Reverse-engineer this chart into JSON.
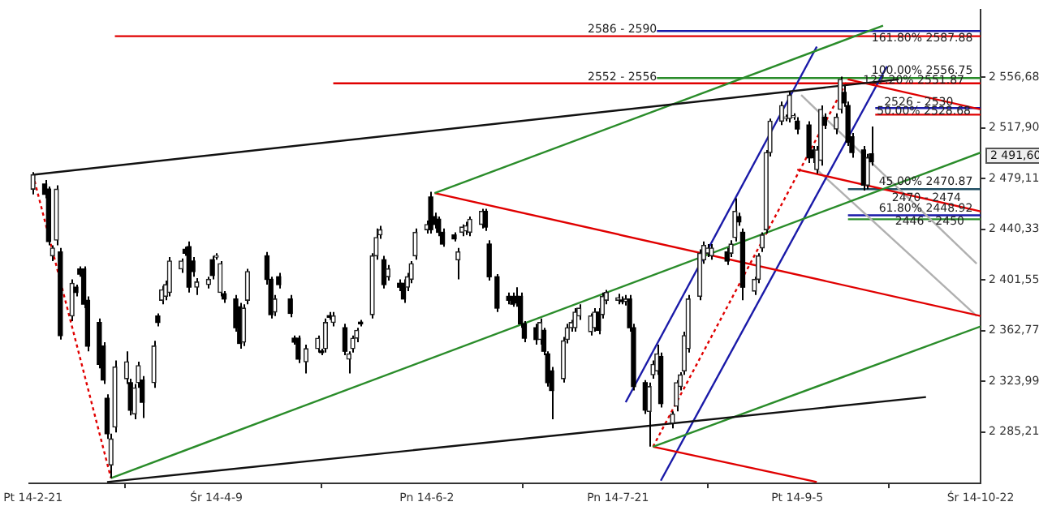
{
  "chart_data": {
    "type": "candlestick",
    "x": [
      "2014-02-21",
      "2014-02-24",
      "2014-02-25",
      "2014-02-26",
      "2014-02-27",
      "2014-02-28",
      "2014-03-03",
      "2014-03-04",
      "2014-03-05",
      "2014-03-06",
      "2014-03-07",
      "2014-03-10",
      "2014-03-11",
      "2014-03-12",
      "2014-03-13",
      "2014-03-14",
      "2014-03-17",
      "2014-03-18",
      "2014-03-19",
      "2014-03-20",
      "2014-03-21",
      "2014-03-24",
      "2014-03-25",
      "2014-03-26",
      "2014-03-27",
      "2014-03-28",
      "2014-03-31",
      "2014-04-01",
      "2014-04-02",
      "2014-04-03",
      "2014-04-04",
      "2014-04-07",
      "2014-04-08",
      "2014-04-09",
      "2014-04-10",
      "2014-04-11",
      "2014-04-14",
      "2014-04-15",
      "2014-04-16",
      "2014-04-17",
      "2014-04-22",
      "2014-04-23",
      "2014-04-24",
      "2014-04-25",
      "2014-04-28",
      "2014-04-29",
      "2014-04-30",
      "2014-05-02",
      "2014-05-05",
      "2014-05-06",
      "2014-05-07",
      "2014-05-08",
      "2014-05-09",
      "2014-05-12",
      "2014-05-13",
      "2014-05-14",
      "2014-05-15",
      "2014-05-16",
      "2014-05-19",
      "2014-05-20",
      "2014-05-21",
      "2014-05-22",
      "2014-05-23",
      "2014-05-26",
      "2014-05-27",
      "2014-05-28",
      "2014-05-29",
      "2014-05-30",
      "2014-06-02",
      "2014-06-03",
      "2014-06-04",
      "2014-06-05",
      "2014-06-06",
      "2014-06-09",
      "2014-06-10",
      "2014-06-11",
      "2014-06-12",
      "2014-06-13",
      "2014-06-16",
      "2014-06-17",
      "2014-06-18",
      "2014-06-20",
      "2014-06-23",
      "2014-06-24",
      "2014-06-25",
      "2014-06-26",
      "2014-06-27",
      "2014-06-30",
      "2014-07-01",
      "2014-07-02",
      "2014-07-03",
      "2014-07-04",
      "2014-07-07",
      "2014-07-08",
      "2014-07-09",
      "2014-07-10",
      "2014-07-11",
      "2014-07-14",
      "2014-07-15",
      "2014-07-16",
      "2014-07-17",
      "2014-07-18",
      "2014-07-21",
      "2014-07-22",
      "2014-07-23",
      "2014-07-24",
      "2014-07-25",
      "2014-07-28",
      "2014-07-29",
      "2014-07-30",
      "2014-07-31",
      "2014-08-01",
      "2014-08-04",
      "2014-08-05",
      "2014-08-06",
      "2014-08-07",
      "2014-08-08",
      "2014-08-11",
      "2014-08-12",
      "2014-08-13",
      "2014-08-14",
      "2014-08-18",
      "2014-08-19",
      "2014-08-20",
      "2014-08-21",
      "2014-08-22",
      "2014-08-25",
      "2014-08-26",
      "2014-08-27",
      "2014-08-28",
      "2014-08-29",
      "2014-09-01",
      "2014-09-02",
      "2014-09-03",
      "2014-09-04",
      "2014-09-05",
      "2014-09-08",
      "2014-09-09",
      "2014-09-10",
      "2014-09-11",
      "2014-09-12",
      "2014-09-15",
      "2014-09-16",
      "2014-09-17",
      "2014-09-18",
      "2014-09-19",
      "2014-09-22",
      "2014-09-23",
      "2014-09-24"
    ],
    "ohlc": [
      [
        2471,
        2484,
        2467,
        2482
      ],
      [
        2475,
        2478,
        2464,
        2467
      ],
      [
        2471,
        2473,
        2428,
        2431
      ],
      [
        2420,
        2428,
        2416,
        2426
      ],
      [
        2432,
        2474,
        2428,
        2471
      ],
      [
        2423,
        2426,
        2356,
        2359
      ],
      [
        2374,
        2402,
        2370,
        2399
      ],
      [
        2396,
        2398,
        2389,
        2392
      ],
      [
        2410,
        2412,
        2404,
        2406
      ],
      [
        2410,
        2412,
        2380,
        2383
      ],
      [
        2386,
        2389,
        2347,
        2351
      ],
      [
        2369,
        2372,
        2334,
        2337
      ],
      [
        2351,
        2354,
        2322,
        2325
      ],
      [
        2311,
        2314,
        2280,
        2284
      ],
      [
        2260,
        2284,
        2250,
        2280
      ],
      [
        2289,
        2340,
        2285,
        2335
      ],
      [
        2326,
        2347,
        2322,
        2339
      ],
      [
        2323,
        2326,
        2298,
        2302
      ],
      [
        2299,
        2322,
        2295,
        2319
      ],
      [
        2323,
        2339,
        2319,
        2336
      ],
      [
        2325,
        2328,
        2296,
        2308
      ],
      [
        2323,
        2355,
        2319,
        2351
      ],
      [
        2374,
        2376,
        2366,
        2369
      ],
      [
        2386,
        2397,
        2383,
        2394
      ],
      [
        2389,
        2401,
        2386,
        2398
      ],
      [
        2392,
        2419,
        2389,
        2416
      ],
      [
        2410,
        2418,
        2407,
        2416
      ],
      [
        2425,
        2427,
        2420,
        2422
      ],
      [
        2427,
        2431,
        2392,
        2396
      ],
      [
        2416,
        2419,
        2404,
        2408
      ],
      [
        2396,
        2403,
        2390,
        2400
      ],
      [
        2398,
        2404,
        2395,
        2402
      ],
      [
        2417,
        2420,
        2402,
        2405
      ],
      [
        2419,
        2422,
        2417,
        2420
      ],
      [
        2392,
        2416,
        2389,
        2414
      ],
      [
        2391,
        2393,
        2384,
        2387
      ],
      [
        2387,
        2390,
        2362,
        2365
      ],
      [
        2381,
        2384,
        2349,
        2353
      ],
      [
        2354,
        2383,
        2351,
        2380
      ],
      [
        2386,
        2410,
        2383,
        2408
      ],
      [
        2420,
        2423,
        2398,
        2402
      ],
      [
        2402,
        2404,
        2372,
        2375
      ],
      [
        2377,
        2390,
        2374,
        2387
      ],
      [
        2404,
        2407,
        2395,
        2398
      ],
      [
        2387,
        2390,
        2373,
        2376
      ],
      [
        2357,
        2359,
        2352,
        2354
      ],
      [
        2357,
        2359,
        2338,
        2341
      ],
      [
        2339,
        2352,
        2330,
        2349
      ],
      [
        2349,
        2359,
        2346,
        2357
      ],
      [
        2347,
        2349,
        2344,
        2346
      ],
      [
        2349,
        2372,
        2346,
        2369
      ],
      [
        2374,
        2377,
        2371,
        2373
      ],
      [
        2369,
        2377,
        2366,
        2374
      ],
      [
        2365,
        2368,
        2344,
        2347
      ],
      [
        2341,
        2347,
        2330,
        2345
      ],
      [
        2349,
        2359,
        2346,
        2357
      ],
      [
        2357,
        2365,
        2354,
        2363
      ],
      [
        2369,
        2371,
        2366,
        2368
      ],
      [
        2375,
        2422,
        2372,
        2420
      ],
      [
        2420,
        2441,
        2417,
        2434
      ],
      [
        2436,
        2443,
        2433,
        2440
      ],
      [
        2417,
        2420,
        2395,
        2398
      ],
      [
        2404,
        2413,
        2401,
        2410
      ],
      [
        2399,
        2402,
        2393,
        2396
      ],
      [
        2399,
        2402,
        2384,
        2387
      ],
      [
        2396,
        2407,
        2393,
        2404
      ],
      [
        2402,
        2416,
        2399,
        2414
      ],
      [
        2420,
        2441,
        2417,
        2438
      ],
      [
        2440,
        2447,
        2437,
        2444
      ],
      [
        2465,
        2469,
        2437,
        2440
      ],
      [
        2450,
        2453,
        2441,
        2444
      ],
      [
        2448,
        2450,
        2435,
        2438
      ],
      [
        2438,
        2441,
        2427,
        2429
      ],
      [
        2436,
        2438,
        2431,
        2433
      ],
      [
        2417,
        2426,
        2402,
        2423
      ],
      [
        2438,
        2444,
        2435,
        2442
      ],
      [
        2439,
        2446,
        2436,
        2443
      ],
      [
        2438,
        2450,
        2435,
        2448
      ],
      [
        2444,
        2456,
        2441,
        2454
      ],
      [
        2454,
        2456,
        2439,
        2442
      ],
      [
        2429,
        2432,
        2401,
        2404
      ],
      [
        2404,
        2406,
        2377,
        2380
      ],
      [
        2389,
        2392,
        2383,
        2386
      ],
      [
        2389,
        2392,
        2381,
        2383
      ],
      [
        2389,
        2396,
        2381,
        2384
      ],
      [
        2389,
        2392,
        2365,
        2368
      ],
      [
        2368,
        2370,
        2354,
        2357
      ],
      [
        2365,
        2368,
        2352,
        2356
      ],
      [
        2356,
        2372,
        2352,
        2369
      ],
      [
        2363,
        2365,
        2344,
        2347
      ],
      [
        2345,
        2347,
        2320,
        2323
      ],
      [
        2332,
        2335,
        2295,
        2317
      ],
      [
        2326,
        2358,
        2323,
        2355
      ],
      [
        2356,
        2368,
        2353,
        2365
      ],
      [
        2365,
        2371,
        2362,
        2369
      ],
      [
        2365,
        2380,
        2362,
        2377
      ],
      [
        2374,
        2383,
        2371,
        2380
      ],
      [
        2362,
        2376,
        2359,
        2374
      ],
      [
        2365,
        2380,
        2362,
        2377
      ],
      [
        2377,
        2380,
        2360,
        2363
      ],
      [
        2375,
        2392,
        2372,
        2389
      ],
      [
        2386,
        2394,
        2383,
        2392
      ],
      [
        2386,
        2391,
        2383,
        2388
      ],
      [
        2386,
        2389,
        2383,
        2385
      ],
      [
        2385,
        2390,
        2382,
        2387
      ],
      [
        2387,
        2390,
        2362,
        2365
      ],
      [
        2365,
        2368,
        2317,
        2320
      ],
      [
        2323,
        2325,
        2299,
        2302
      ],
      [
        2301,
        2323,
        2274,
        2320
      ],
      [
        2329,
        2340,
        2326,
        2337
      ],
      [
        2332,
        2352,
        2329,
        2345
      ],
      [
        2343,
        2346,
        2304,
        2307
      ],
      [
        2292,
        2301,
        2288,
        2299
      ],
      [
        2305,
        2325,
        2301,
        2323
      ],
      [
        2320,
        2331,
        2317,
        2329
      ],
      [
        2332,
        2362,
        2329,
        2359
      ],
      [
        2349,
        2390,
        2346,
        2387
      ],
      [
        2389,
        2425,
        2386,
        2422
      ],
      [
        2417,
        2431,
        2414,
        2428
      ],
      [
        2422,
        2429,
        2419,
        2426
      ],
      [
        2420,
        2429,
        2417,
        2426
      ],
      [
        2423,
        2426,
        2413,
        2416
      ],
      [
        2422,
        2432,
        2419,
        2429
      ],
      [
        2434,
        2464,
        2431,
        2454
      ],
      [
        2450,
        2453,
        2443,
        2446
      ],
      [
        2438,
        2441,
        2386,
        2396
      ],
      [
        2393,
        2404,
        2390,
        2402
      ],
      [
        2402,
        2422,
        2399,
        2420
      ],
      [
        2426,
        2438,
        2423,
        2436
      ],
      [
        2440,
        2501,
        2437,
        2499
      ],
      [
        2499,
        2525,
        2496,
        2523
      ],
      [
        2523,
        2538,
        2520,
        2535
      ],
      [
        2525,
        2528,
        2523,
        2526
      ],
      [
        2525,
        2546,
        2522,
        2543
      ],
      [
        2526,
        2529,
        2524,
        2527
      ],
      [
        2523,
        2526,
        2513,
        2517
      ],
      [
        2520,
        2523,
        2491,
        2495
      ],
      [
        2501,
        2504,
        2491,
        2495
      ],
      [
        2486,
        2504,
        2483,
        2501
      ],
      [
        2493,
        2535,
        2489,
        2532
      ],
      [
        2526,
        2529,
        2517,
        2520
      ],
      [
        2517,
        2529,
        2513,
        2526
      ],
      [
        2532,
        2557,
        2529,
        2555
      ],
      [
        2545,
        2550,
        2534,
        2537
      ],
      [
        2535,
        2538,
        2504,
        2507
      ],
      [
        2511,
        2514,
        2495,
        2499
      ],
      [
        2501,
        2504,
        2470,
        2474
      ],
      [
        2474,
        2498,
        2471,
        2495
      ],
      [
        2498,
        2519,
        2489,
        2492
      ]
    ],
    "xlim": [
      "2014-02-20",
      "2014-10-22"
    ],
    "xticks": [
      {
        "value": "2014-02-21",
        "label": "Pt 14-2-21"
      },
      {
        "value": "2014-04-09",
        "label": "Śr 14-4-9"
      },
      {
        "value": "2014-06-02",
        "label": "Pn 14-6-2"
      },
      {
        "value": "2014-07-21",
        "label": "Pn 14-7-21"
      },
      {
        "value": "2014-09-05",
        "label": "Pt 14-9-5"
      },
      {
        "value": "2014-10-22",
        "label": "Śr 14-10-22"
      }
    ],
    "ylim": [
      2246,
      2608
    ],
    "yticks": [
      {
        "value": 2285.21,
        "label": "2 285,21"
      },
      {
        "value": 2323.99,
        "label": "2 323,99"
      },
      {
        "value": 2362.77,
        "label": "2 362,77"
      },
      {
        "value": 2401.55,
        "label": "2 401,55"
      },
      {
        "value": 2440.33,
        "label": "2 440,33"
      },
      {
        "value": 2479.11,
        "label": "2 479,11"
      },
      {
        "value": 2517.9,
        "label": "2 517,90"
      },
      {
        "value": 2556.68,
        "label": "2 556,68"
      }
    ],
    "grid": false,
    "legend": false,
    "series": [
      {
        "type": "line",
        "color": "#111111",
        "x": [
          "2014-02-21",
          "2014-10-01"
        ],
        "values": [
          2482,
          2555
        ]
      },
      {
        "type": "line",
        "color": "#111111",
        "x": [
          "2014-03-12",
          "2014-10-08"
        ],
        "values": [
          2247,
          2312
        ]
      },
      {
        "type": "line",
        "color": "#2a8c2a",
        "x": [
          "2014-03-13",
          "2014-10-22"
        ],
        "values": [
          2250,
          2499
        ]
      },
      {
        "type": "line",
        "color": "#2a8c2a",
        "x": [
          "2014-06-04",
          "2014-09-27"
        ],
        "values": [
          2468,
          2596
        ]
      },
      {
        "type": "line",
        "color": "#2a8c2a",
        "x": [
          "2014-07-30",
          "2014-10-22"
        ],
        "values": [
          2274,
          2366
        ]
      },
      {
        "type": "line",
        "color": "#e00000",
        "x": [
          "2014-06-04",
          "2014-10-22"
        ],
        "values": [
          2468,
          2374
        ]
      },
      {
        "type": "line",
        "color": "#e00000",
        "x": [
          "2014-09-05",
          "2014-10-22"
        ],
        "values": [
          2486,
          2454
        ]
      },
      {
        "type": "line",
        "color": "#e00000",
        "x": [
          "2014-09-18",
          "2014-10-22"
        ],
        "values": [
          2555,
          2532
        ]
      },
      {
        "type": "line",
        "color": "#e00000",
        "x": [
          "2014-07-30",
          "2014-09-10"
        ],
        "values": [
          2274,
          2247
        ]
      },
      {
        "type": "line",
        "color": "#e00000",
        "line_style": "dotted",
        "x": [
          "2014-02-21",
          "2014-03-13"
        ],
        "values": [
          2482,
          2250
        ]
      },
      {
        "type": "line",
        "color": "#e00000",
        "line_style": "dotted",
        "x": [
          "2014-07-30",
          "2014-09-18"
        ],
        "values": [
          2274,
          2555
        ]
      },
      {
        "type": "line",
        "color": "#1a1aa8",
        "x": [
          "2014-07-23",
          "2014-09-10"
        ],
        "values": [
          2308,
          2580
        ]
      },
      {
        "type": "line",
        "color": "#1a1aa8",
        "x": [
          "2014-08-01",
          "2014-09-28"
        ],
        "values": [
          2248,
          2565
        ]
      },
      {
        "type": "line",
        "color": "#b0b0b0",
        "x": [
          "2014-09-06",
          "2014-10-21"
        ],
        "values": [
          2543,
          2414
        ]
      },
      {
        "type": "line",
        "color": "#b0b0b0",
        "x": [
          "2014-09-10",
          "2014-10-21"
        ],
        "values": [
          2486,
          2374
        ]
      },
      {
        "type": "line",
        "color": "#e00000",
        "x": [
          "2014-03-14",
          "2014-10-22"
        ],
        "values": [
          2588,
          2588
        ]
      },
      {
        "type": "line",
        "color": "#1a1aa8",
        "x": [
          "2014-07-31",
          "2014-10-22"
        ],
        "values": [
          2592,
          2592
        ]
      },
      {
        "type": "line",
        "color": "#e00000",
        "x": [
          "2014-05-09",
          "2014-10-22"
        ],
        "values": [
          2552,
          2552
        ]
      },
      {
        "type": "line",
        "color": "#2a8c2a",
        "x": [
          "2014-07-31",
          "2014-10-22"
        ],
        "values": [
          2556,
          2556
        ]
      },
      {
        "type": "line",
        "color": "#1a1aa8",
        "x": [
          "2014-09-25",
          "2014-10-22"
        ],
        "values": [
          2533,
          2533
        ]
      },
      {
        "type": "line",
        "color": "#e00000",
        "x": [
          "2014-09-25",
          "2014-10-22"
        ],
        "values": [
          2528,
          2528
        ]
      },
      {
        "type": "line",
        "color": "#1f4e63",
        "x": [
          "2014-09-18",
          "2014-10-22"
        ],
        "values": [
          2471,
          2471
        ]
      },
      {
        "type": "line",
        "color": "#1a1aa8",
        "x": [
          "2014-09-18",
          "2014-10-22"
        ],
        "values": [
          2451,
          2451
        ]
      },
      {
        "type": "line",
        "color": "#2a8c2a",
        "x": [
          "2014-09-18",
          "2014-10-22"
        ],
        "values": [
          2448,
          2448
        ]
      }
    ],
    "annotations": [
      {
        "text": "2586 - 2590",
        "x": "2014-07-31",
        "y": 2589
      },
      {
        "text": "2552 - 2556",
        "x": "2014-07-31",
        "y": 2552
      },
      {
        "text": "2526 - 2530",
        "x": "2014-10-15",
        "y": 2533
      },
      {
        "text": "2470 - 2474",
        "x": "2014-10-17",
        "y": 2460
      },
      "2446 - 2450",
      {
        "text": "161.80% 2587.88",
        "x": "2014-10-20",
        "y": 2582
      },
      {
        "text": "100.00% 2556.75",
        "x": "2014-10-20",
        "y": 2557
      },
      "127.20% 2551.87",
      "50.00% 2528.68",
      {
        "text": "45.00% 2470.87",
        "x": "2014-10-20",
        "y": 2472
      },
      {
        "text": "61.80% 2448.92",
        "x": "2014-10-20",
        "y": 2452
      },
      "2 491,60"
    ]
  }
}
